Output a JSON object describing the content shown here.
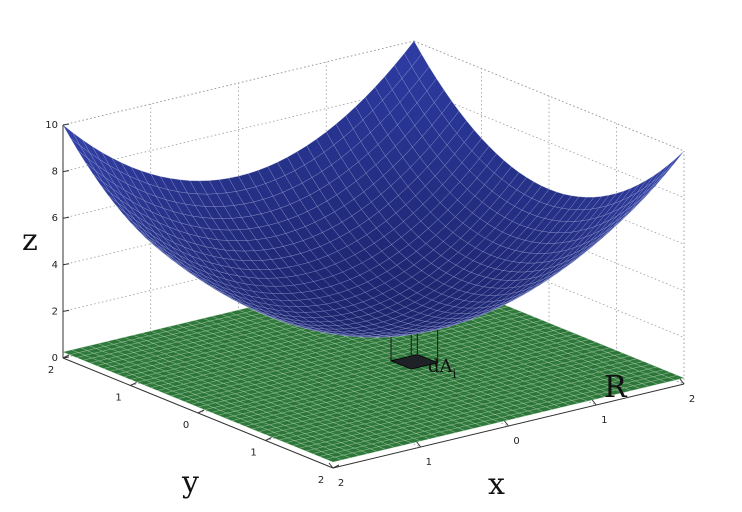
{
  "chart_data": {
    "type": "surface3d",
    "title": "",
    "function": "z = x^2 + y^2 + 2",
    "xlabel": "x",
    "ylabel": "y",
    "zlabel": "z",
    "xlim": [
      -2,
      2
    ],
    "ylim": [
      -2,
      2
    ],
    "zlim": [
      0,
      10
    ],
    "x_ticks": [
      -2,
      -1,
      0,
      1,
      2
    ],
    "y_ticks": [
      -2,
      -1,
      0,
      1,
      2
    ],
    "z_ticks": [
      0,
      2,
      4,
      6,
      8,
      10
    ],
    "x_tick_labels": [
      "2",
      "1",
      "0",
      "1",
      "2"
    ],
    "y_tick_labels": [
      "2",
      "1",
      "0",
      "1",
      "2"
    ],
    "z_tick_labels": [
      "0",
      "2",
      "4",
      "6",
      "8",
      "10"
    ],
    "grid": true,
    "surface_color": "#2e3f96",
    "region_color": "#2f7a3c",
    "region_label": "R",
    "element_label": "dA",
    "element_subscript": "i",
    "element_x": [
      0.2,
      0.5
    ],
    "element_y": [
      0.0,
      0.3
    ]
  }
}
